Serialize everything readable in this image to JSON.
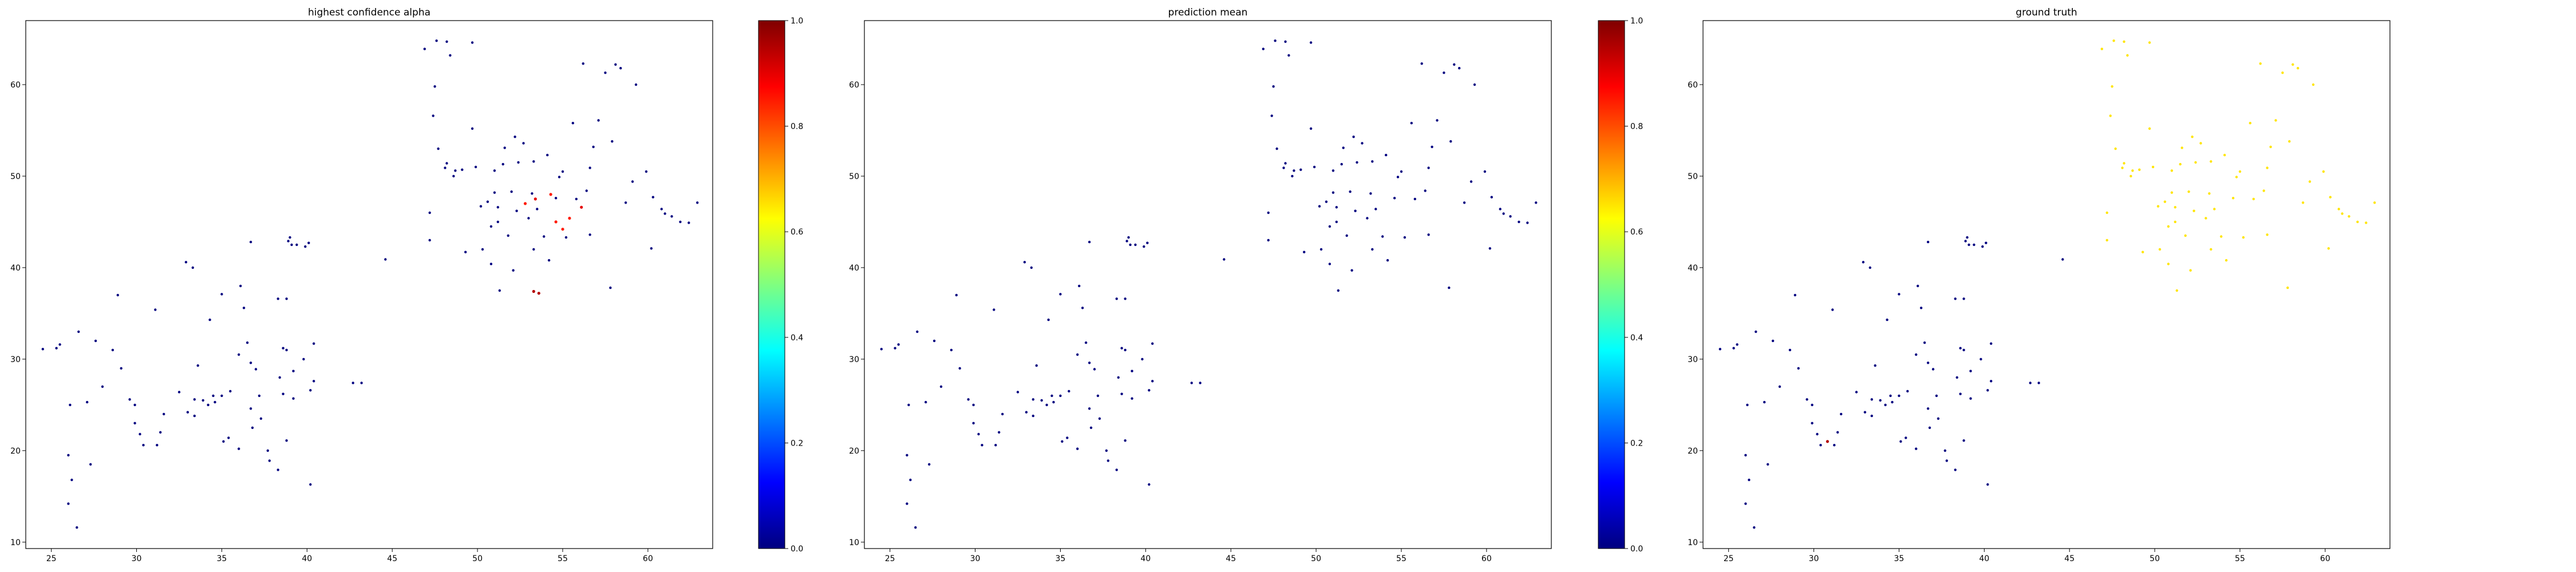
{
  "colorbar": {
    "ticks": [
      0.0,
      0.2,
      0.4,
      0.6,
      0.8,
      1.0
    ],
    "labels": [
      "0.0",
      "0.2",
      "0.4",
      "0.6",
      "0.8",
      "1.0"
    ],
    "colormap": "jet"
  },
  "chart_data": [
    {
      "type": "scatter",
      "title": "highest confidence alpha",
      "xlim": [
        23.5,
        63.8
      ],
      "ylim": [
        9.3,
        67.0
      ],
      "xticks": [
        25,
        30,
        35,
        40,
        45,
        50,
        55,
        60
      ],
      "yticks": [
        10,
        20,
        30,
        40,
        50,
        60
      ],
      "colorbar": true,
      "highlights": [
        {
          "x": 52.8,
          "y": 47.0,
          "value": 0.85
        },
        {
          "x": 53.4,
          "y": 47.5,
          "value": 0.9
        },
        {
          "x": 54.6,
          "y": 45.0,
          "value": 0.85
        },
        {
          "x": 55.0,
          "y": 44.2,
          "value": 0.85
        },
        {
          "x": 55.4,
          "y": 45.4,
          "value": 0.85
        },
        {
          "x": 56.1,
          "y": 46.6,
          "value": 0.9
        },
        {
          "x": 54.3,
          "y": 48.0,
          "value": 0.85
        },
        {
          "x": 53.3,
          "y": 37.4,
          "value": 0.95
        },
        {
          "x": 53.6,
          "y": 37.2,
          "value": 0.95
        }
      ]
    },
    {
      "type": "scatter",
      "title": "prediction mean",
      "xlim": [
        23.5,
        63.8
      ],
      "ylim": [
        9.3,
        67.0
      ],
      "xticks": [
        25,
        30,
        35,
        40,
        45,
        50,
        55,
        60
      ],
      "yticks": [
        10,
        20,
        30,
        40,
        50,
        60
      ],
      "colorbar": true,
      "highlights": []
    },
    {
      "type": "scatter",
      "title": "ground truth",
      "xlim": [
        23.5,
        63.8
      ],
      "ylim": [
        9.3,
        67.0
      ],
      "xticks": [
        25,
        30,
        35,
        40,
        45,
        50,
        55,
        60
      ],
      "yticks": [
        10,
        20,
        30,
        40,
        50,
        60
      ],
      "colorbar": false,
      "top_cluster_value": 0.65,
      "highlights": [
        {
          "x": 30.8,
          "y": 21.0,
          "value": 0.95
        }
      ]
    }
  ],
  "points": [
    [
      24.5,
      31.1,
      0.0
    ],
    [
      25.3,
      31.2,
      0.0
    ],
    [
      25.5,
      31.6,
      0.0
    ],
    [
      26.6,
      33.0,
      0.0
    ],
    [
      26.1,
      25.0,
      0.0
    ],
    [
      26.0,
      19.5,
      0.0
    ],
    [
      26.2,
      16.8,
      0.0
    ],
    [
      26.0,
      14.2,
      0.0
    ],
    [
      26.5,
      11.6,
      0.0
    ],
    [
      27.3,
      18.5,
      0.0
    ],
    [
      27.1,
      25.3,
      0.0
    ],
    [
      27.6,
      32.0,
      0.0
    ],
    [
      28.0,
      27.0,
      0.0
    ],
    [
      28.6,
      31.0,
      0.0
    ],
    [
      28.9,
      37.0,
      0.0
    ],
    [
      29.1,
      29.0,
      0.0
    ],
    [
      29.6,
      25.6,
      0.0
    ],
    [
      29.9,
      25.0,
      0.0
    ],
    [
      29.9,
      23.0,
      0.0
    ],
    [
      30.2,
      21.8,
      0.0
    ],
    [
      30.4,
      20.6,
      0.0
    ],
    [
      31.2,
      20.6,
      0.0
    ],
    [
      31.4,
      22.0,
      0.0
    ],
    [
      31.6,
      24.0,
      0.0
    ],
    [
      31.1,
      35.4,
      0.0
    ],
    [
      32.5,
      26.4,
      0.0
    ],
    [
      32.9,
      40.6,
      0.0
    ],
    [
      33.0,
      24.2,
      0.0
    ],
    [
      33.4,
      23.8,
      0.0
    ],
    [
      33.3,
      40.0,
      0.0
    ],
    [
      33.4,
      25.6,
      0.0
    ],
    [
      33.6,
      29.3,
      0.0
    ],
    [
      33.9,
      25.5,
      0.0
    ],
    [
      34.2,
      25.0,
      0.0
    ],
    [
      34.5,
      26.0,
      0.0
    ],
    [
      34.3,
      34.3,
      0.0
    ],
    [
      34.6,
      25.3,
      0.0
    ],
    [
      35.0,
      37.1,
      0.0
    ],
    [
      35.1,
      21.0,
      0.0
    ],
    [
      35.4,
      21.4,
      0.0
    ],
    [
      35.0,
      26.0,
      0.0
    ],
    [
      35.5,
      26.5,
      0.0
    ],
    [
      36.0,
      20.2,
      0.0
    ],
    [
      36.0,
      30.5,
      0.0
    ],
    [
      36.1,
      38.0,
      0.0
    ],
    [
      36.5,
      31.8,
      0.0
    ],
    [
      36.3,
      35.6,
      0.0
    ],
    [
      36.7,
      29.6,
      0.0
    ],
    [
      36.7,
      24.6,
      0.0
    ],
    [
      36.7,
      42.8,
      0.0
    ],
    [
      36.8,
      22.5,
      0.0
    ],
    [
      37.0,
      28.9,
      0.0
    ],
    [
      37.3,
      23.5,
      0.0
    ],
    [
      37.2,
      26.0,
      0.0
    ],
    [
      37.7,
      20.0,
      0.0
    ],
    [
      37.8,
      18.9,
      0.0
    ],
    [
      38.3,
      36.6,
      0.0
    ],
    [
      38.4,
      28.0,
      0.0
    ],
    [
      38.6,
      26.2,
      0.0
    ],
    [
      38.6,
      31.2,
      0.0
    ],
    [
      38.3,
      17.9,
      0.0
    ],
    [
      38.8,
      36.6,
      0.0
    ],
    [
      38.8,
      21.1,
      0.0
    ],
    [
      38.9,
      42.9,
      0.0
    ],
    [
      38.8,
      31.0,
      0.0
    ],
    [
      39.2,
      28.7,
      0.0
    ],
    [
      39.0,
      43.3,
      0.0
    ],
    [
      39.1,
      42.5,
      0.0
    ],
    [
      39.4,
      42.5,
      0.0
    ],
    [
      39.2,
      25.7,
      0.0
    ],
    [
      39.9,
      42.3,
      0.0
    ],
    [
      39.8,
      30.0,
      0.0
    ],
    [
      40.1,
      42.7,
      0.0
    ],
    [
      40.2,
      26.6,
      0.0
    ],
    [
      40.2,
      16.3,
      0.0
    ],
    [
      40.4,
      31.7,
      0.0
    ],
    [
      40.4,
      27.6,
      0.0
    ],
    [
      42.7,
      27.4,
      0.0
    ],
    [
      43.2,
      27.4,
      0.0
    ],
    [
      44.6,
      40.9,
      0.0
    ],
    [
      46.9,
      63.9,
      0.0
    ],
    [
      47.2,
      46.0,
      0.0
    ],
    [
      47.2,
      43.0,
      0.0
    ],
    [
      47.4,
      56.6,
      0.0
    ],
    [
      47.5,
      59.8,
      0.0
    ],
    [
      47.7,
      53.0,
      0.0
    ],
    [
      47.6,
      64.8,
      0.0
    ],
    [
      48.1,
      50.9,
      0.0
    ],
    [
      48.2,
      51.4,
      0.0
    ],
    [
      48.4,
      63.2,
      0.0
    ],
    [
      48.2,
      64.7,
      0.0
    ],
    [
      48.6,
      50.0,
      0.0
    ],
    [
      48.7,
      50.6,
      0.0
    ],
    [
      49.1,
      50.7,
      0.0
    ],
    [
      49.3,
      41.7,
      0.0
    ],
    [
      49.7,
      64.6,
      0.0
    ],
    [
      49.7,
      55.2,
      0.0
    ],
    [
      49.9,
      51.0,
      0.0
    ],
    [
      50.2,
      46.7,
      0.0
    ],
    [
      50.3,
      42.0,
      0.0
    ],
    [
      50.6,
      47.2,
      0.0
    ],
    [
      50.8,
      40.4,
      0.0
    ],
    [
      50.8,
      44.5,
      0.0
    ],
    [
      51.0,
      48.2,
      0.0
    ],
    [
      51.0,
      50.6,
      0.0
    ],
    [
      51.2,
      45.0,
      0.0
    ],
    [
      51.3,
      37.5,
      0.0
    ],
    [
      51.2,
      46.6,
      0.0
    ],
    [
      51.5,
      51.3,
      0.0
    ],
    [
      51.6,
      53.1,
      0.0
    ],
    [
      51.8,
      43.5,
      0.0
    ],
    [
      52.0,
      48.3,
      0.0
    ],
    [
      52.1,
      39.7,
      0.0
    ],
    [
      52.2,
      54.3,
      0.0
    ],
    [
      52.3,
      46.2,
      0.0
    ],
    [
      52.4,
      51.5,
      0.0
    ],
    [
      52.7,
      53.6,
      0.0
    ],
    [
      53.0,
      45.4,
      0.0
    ],
    [
      53.2,
      48.1,
      0.0
    ],
    [
      53.3,
      42.0,
      0.0
    ],
    [
      53.3,
      51.6,
      0.0
    ],
    [
      53.5,
      46.4,
      0.0
    ],
    [
      53.9,
      43.4,
      0.0
    ],
    [
      54.1,
      52.3,
      0.0
    ],
    [
      54.2,
      40.8,
      0.0
    ],
    [
      54.6,
      47.6,
      0.0
    ],
    [
      54.8,
      49.9,
      0.0
    ],
    [
      55.0,
      50.5,
      0.0
    ],
    [
      55.2,
      43.3,
      0.0
    ],
    [
      55.6,
      55.8,
      0.0
    ],
    [
      55.8,
      47.5,
      0.0
    ],
    [
      56.2,
      62.3,
      0.0
    ],
    [
      56.4,
      48.4,
      0.0
    ],
    [
      56.6,
      43.6,
      0.0
    ],
    [
      56.6,
      50.9,
      0.0
    ],
    [
      56.8,
      53.2,
      0.0
    ],
    [
      57.1,
      56.1,
      0.0
    ],
    [
      57.5,
      61.3,
      0.0
    ],
    [
      57.8,
      37.8,
      0.0
    ],
    [
      57.9,
      53.8,
      0.0
    ],
    [
      58.1,
      62.2,
      0.0
    ],
    [
      58.4,
      61.8,
      0.0
    ],
    [
      58.7,
      47.1,
      0.0
    ],
    [
      59.1,
      49.4,
      0.0
    ],
    [
      59.3,
      60.0,
      0.0
    ],
    [
      59.9,
      50.5,
      0.0
    ],
    [
      60.2,
      42.1,
      0.0
    ],
    [
      60.3,
      47.7,
      0.0
    ],
    [
      60.8,
      46.4,
      0.0
    ],
    [
      61.0,
      45.9,
      0.0
    ],
    [
      61.4,
      45.6,
      0.0
    ],
    [
      61.9,
      45.0,
      0.0
    ],
    [
      62.4,
      44.9,
      0.0
    ],
    [
      62.9,
      47.1,
      0.0
    ]
  ]
}
